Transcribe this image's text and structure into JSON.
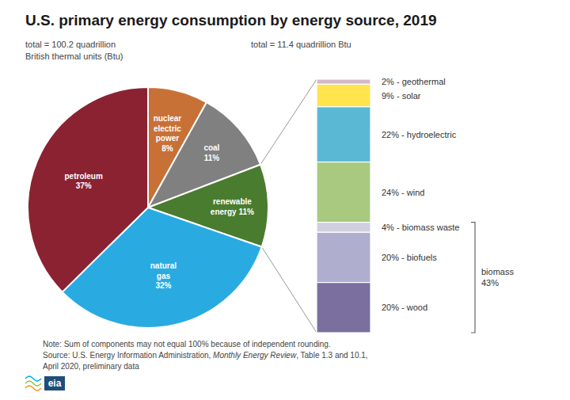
{
  "chart_data": [
    {
      "type": "pie",
      "title": "U.S. primary energy consumption by energy source, 2019",
      "subtitle": "total = 100.2 quadrillion\nBritish thermal units (Btu)",
      "categories": [
        "nuclear\nelectric\npower\n8%",
        "coal\n11%",
        "renewable\nenergy 11%",
        "natural\ngas\n32%",
        "petroleum\n37%"
      ],
      "values": [
        8,
        11,
        11,
        32,
        37
      ],
      "colors": [
        "#C87137",
        "#808080",
        "#4A7C2F",
        "#29ABE2",
        "#8B2232"
      ],
      "annotations": [
        "Note: Sum of components may not equal 100% because of independent rounding.",
        "Source: U.S. Energy Information Administration, ",
        "Monthly Energy Review",
        ", Table 1.3 and 10.1,",
        "April 2020, preliminary data",
        "eia"
      ]
    },
    {
      "type": "bar",
      "stacked": true,
      "subtitle": "total = 11.4 quadrillion Btu",
      "categories": [
        null
      ],
      "series": [
        {
          "name": "2% - geothermal",
          "color": "#D4B8C8",
          "values": [
            2
          ]
        },
        {
          "name": "9% - solar",
          "color": "#FFE44D",
          "values": [
            9
          ]
        },
        {
          "name": "22% - hydroelectric",
          "color": "#5BB8D4",
          "values": [
            22
          ]
        },
        {
          "name": "24% - wind",
          "color": "#A8C97F",
          "values": [
            24
          ]
        },
        {
          "name": "4% - biomass waste",
          "color": "#D0CEDF",
          "values": [
            4
          ]
        },
        {
          "name": "20% - biofuels",
          "color": "#B0AECF",
          "values": [
            20
          ]
        },
        {
          "name": "20% - wood",
          "color": "#7B6FA0",
          "values": [
            20
          ]
        }
      ],
      "ylim": [
        0,
        101
      ],
      "yticks": [],
      "tick_labels": false,
      "annotations": [
        {
          "text": "biomass\n43%",
          "series": [
            4,
            5,
            6
          ]
        }
      ]
    }
  ]
}
